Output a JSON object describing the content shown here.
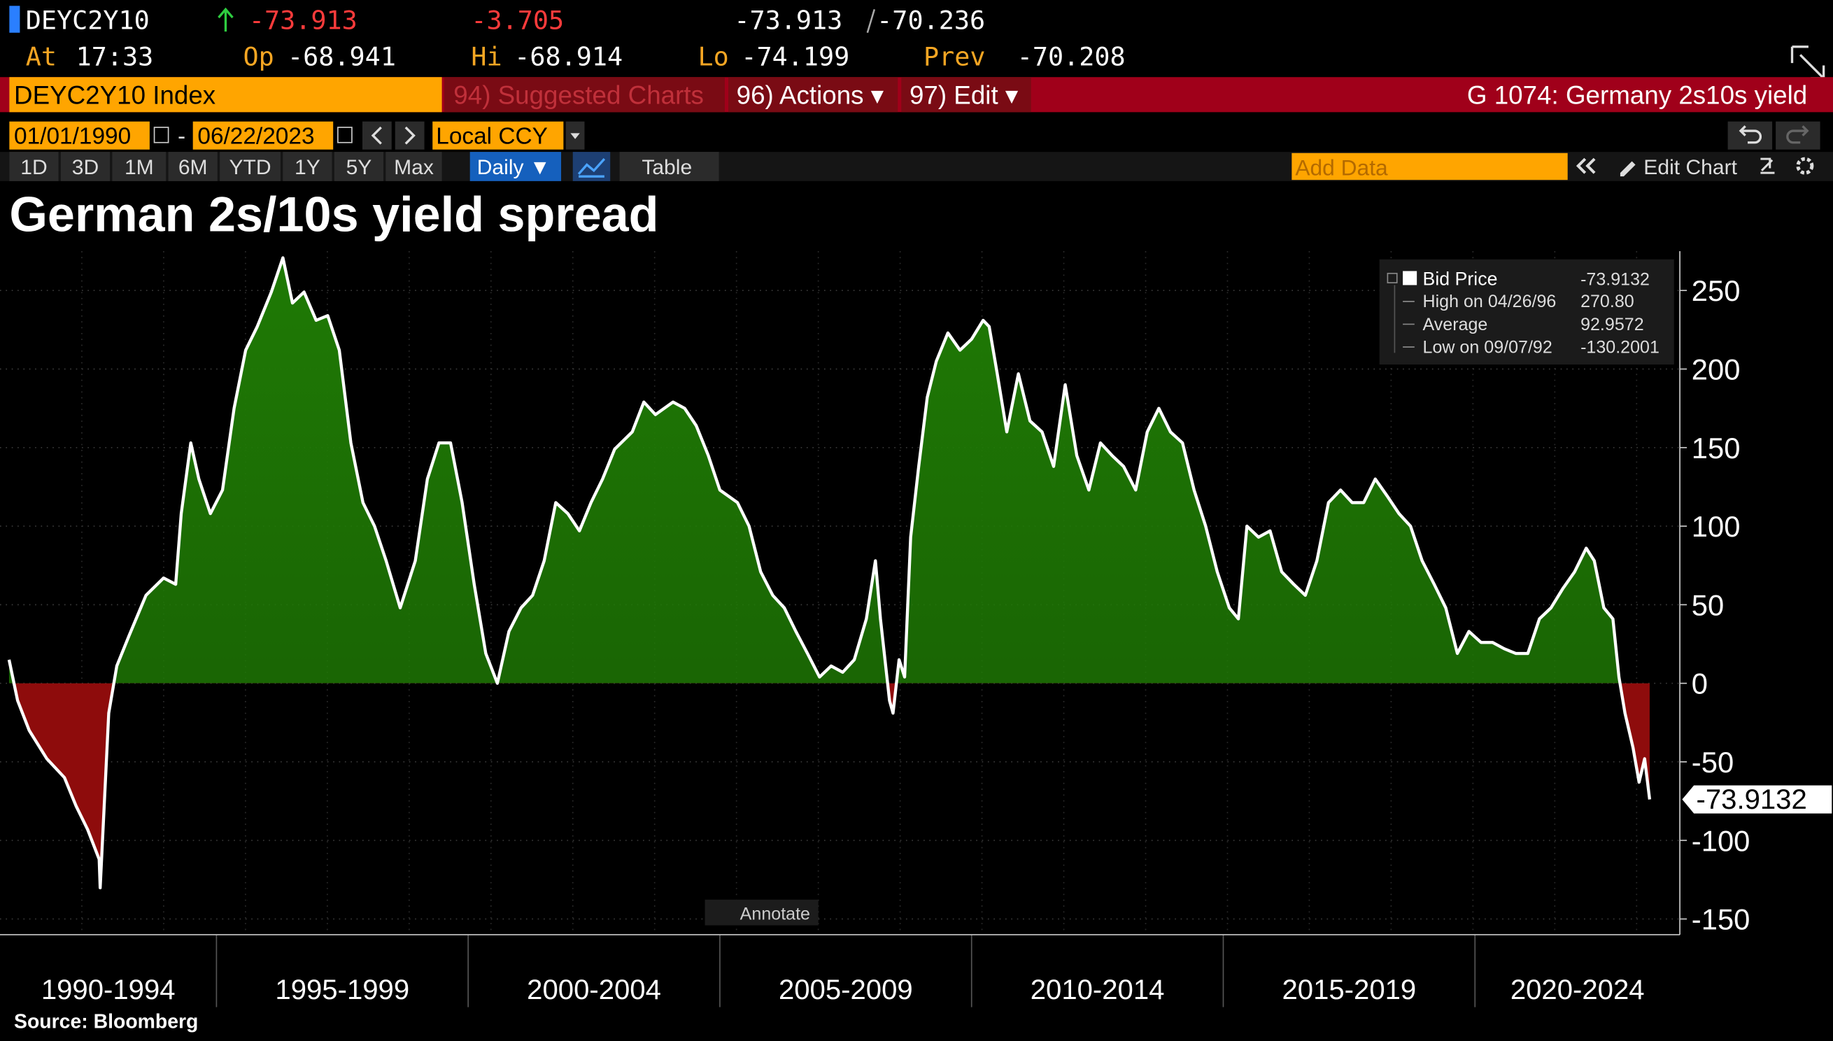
{
  "ui": {
    "quote": {
      "ticker": "DEYC2Y10",
      "last": "-73.913",
      "change": "-3.705",
      "bid": "-73.913",
      "ask": "-70.236",
      "time_label": "At",
      "time": "17:33",
      "open_label": "Op",
      "open": "-68.941",
      "high_label": "Hi",
      "high": "-68.914",
      "low_label": "Lo",
      "low": "-74.199",
      "prev_label": "Prev",
      "prev": "-70.208"
    },
    "menu": {
      "security": "DEYC2Y10 Index",
      "suggested": "94) Suggested Charts",
      "actions": "96) Actions ▾",
      "edit": "97) Edit ▾",
      "function": "G 1074: Germany 2s10s yield"
    },
    "toolbar": {
      "start_date": "01/01/1990",
      "date_separator": "-",
      "end_date": "06/22/2023",
      "currency": "Local CCY",
      "periods": [
        "1D",
        "3D",
        "1M",
        "6M",
        "YTD",
        "1Y",
        "5Y",
        "Max"
      ],
      "frequency": "Daily ▼",
      "table": "Table",
      "add_data": "Add Data",
      "edit_chart": "Edit Chart"
    },
    "annotate": "Annotate",
    "source": "Source: Bloomberg"
  },
  "chart_data": {
    "type": "area",
    "title": "German 2s/10s yield spread",
    "x": [
      1990.88,
      1991.05,
      1991.28,
      1991.63,
      1991.98,
      1992.21,
      1992.44,
      1992.67,
      1992.69,
      1992.86,
      1993.02,
      1993.26,
      1993.6,
      1993.95,
      1994.19,
      1994.3,
      1994.49,
      1994.65,
      1994.88,
      1995.12,
      1995.35,
      1995.58,
      1995.81,
      1996.09,
      1996.32,
      1996.51,
      1996.74,
      1996.98,
      1997.21,
      1997.44,
      1997.67,
      1997.91,
      1998.14,
      1998.37,
      1998.65,
      1998.95,
      1999.19,
      1999.42,
      1999.65,
      1999.88,
      2000.12,
      2000.35,
      2000.58,
      2000.81,
      2001.05,
      2001.28,
      2001.51,
      2001.74,
      2001.98,
      2002.21,
      2002.44,
      2002.67,
      2002.91,
      2003.26,
      2003.49,
      2003.72,
      2004.07,
      2004.3,
      2004.53,
      2004.77,
      2005.0,
      2005.35,
      2005.58,
      2005.81,
      2006.05,
      2006.28,
      2006.51,
      2006.74,
      2006.98,
      2007.21,
      2007.44,
      2007.67,
      2007.91,
      2008.09,
      2008.19,
      2008.37,
      2008.44,
      2008.56,
      2008.67,
      2008.79,
      2008.95,
      2009.12,
      2009.3,
      2009.53,
      2009.77,
      2010.0,
      2010.23,
      2010.35,
      2010.51,
      2010.7,
      2010.93,
      2011.16,
      2011.4,
      2011.63,
      2011.86,
      2012.09,
      2012.33,
      2012.56,
      2012.79,
      2013.02,
      2013.26,
      2013.49,
      2013.72,
      2013.95,
      2014.19,
      2014.42,
      2014.65,
      2014.88,
      2015.12,
      2015.3,
      2015.47,
      2015.7,
      2015.93,
      2016.16,
      2016.4,
      2016.63,
      2016.86,
      2017.09,
      2017.33,
      2017.56,
      2017.79,
      2018.02,
      2018.26,
      2018.49,
      2018.72,
      2018.95,
      2019.19,
      2019.42,
      2019.65,
      2019.88,
      2020.12,
      2020.35,
      2020.58,
      2020.81,
      2021.05,
      2021.28,
      2021.51,
      2021.74,
      2021.98,
      2022.21,
      2022.37,
      2022.56,
      2022.74,
      2022.86,
      2022.98,
      2023.14,
      2023.26,
      2023.37,
      2023.47
    ],
    "series": [
      {
        "name": "Bid Price",
        "color": "#ffffff",
        "values": [
          15,
          -11,
          -30,
          -48,
          -60,
          -78,
          -93,
          -112,
          -130.2001,
          -19,
          11,
          30,
          56,
          67,
          63,
          108,
          153,
          130,
          108,
          123,
          175,
          212,
          227,
          249,
          270.8,
          242,
          249,
          231,
          234,
          212,
          153,
          115,
          100,
          78,
          48,
          78,
          130,
          153,
          153,
          115,
          63,
          19,
          0,
          33,
          48,
          56,
          78,
          115,
          108,
          97,
          115,
          130,
          149,
          160,
          179,
          171,
          179,
          175,
          164,
          145,
          123,
          115,
          100,
          71,
          56,
          48,
          33,
          19,
          4,
          11,
          7,
          15,
          41,
          78,
          41,
          -11,
          -19,
          15,
          4,
          93,
          138,
          182,
          205,
          223,
          212,
          219,
          231,
          227,
          197,
          160,
          197,
          167,
          160,
          138,
          190,
          145,
          123,
          153,
          145,
          138,
          123,
          160,
          175,
          160,
          153,
          123,
          100,
          71,
          48,
          41,
          100,
          93,
          97,
          71,
          63,
          56,
          78,
          115,
          123,
          115,
          115,
          130,
          119,
          108,
          100,
          78,
          63,
          48,
          19,
          33,
          26,
          26,
          22,
          19,
          19,
          41,
          48,
          60,
          71,
          86,
          78,
          48,
          41,
          4,
          -19,
          -41,
          -63,
          -48,
          -73.9132
        ]
      }
    ],
    "positive_color": "#1f7a05",
    "negative_color": "#8e0c0c",
    "xlim": [
      1990.7,
      2024.07
    ],
    "xticks": [
      {
        "value": 1990.7,
        "label": "1990-1994"
      },
      {
        "value": 1995,
        "label": "1995-1999"
      },
      {
        "value": 2000,
        "label": "2000-2004"
      },
      {
        "value": 2005,
        "label": "2005-2009"
      },
      {
        "value": 2010,
        "label": "2010-2014"
      },
      {
        "value": 2015,
        "label": "2015-2019"
      },
      {
        "value": 2020,
        "label": "2020-2024"
      }
    ],
    "ylim": [
      -160,
      275
    ],
    "yticks": [
      -150,
      -100,
      -50,
      0,
      50,
      100,
      150,
      200,
      250
    ],
    "grid": true,
    "legend": {
      "position": "top-right",
      "stats": [
        {
          "label": "High on 04/26/96",
          "value": "270.80"
        },
        {
          "label": "Average",
          "value": "92.9572"
        },
        {
          "label": "Low on 09/07/92",
          "value": "-130.2001"
        }
      ]
    }
  }
}
